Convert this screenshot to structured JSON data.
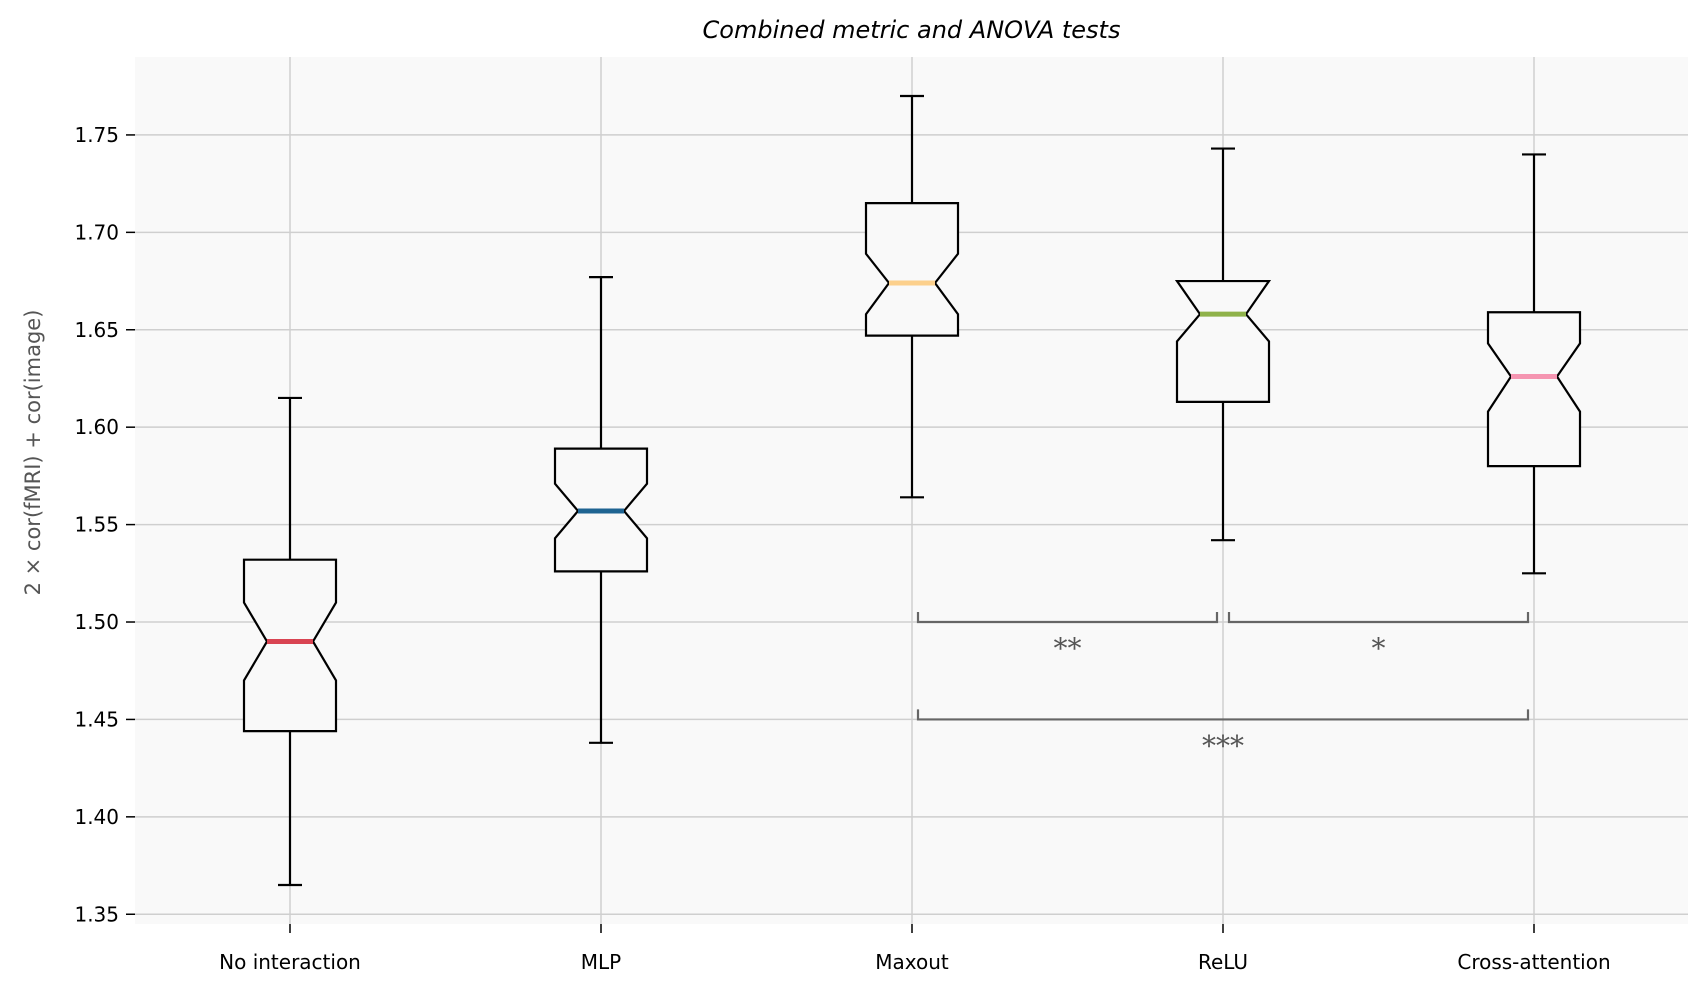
{
  "chart_data": {
    "type": "boxplot",
    "title": "Combined metric and ANOVA tests",
    "xlabel": "",
    "ylabel": "2 × cor(fMRI) + cor(image)",
    "ylim": [
      1.345,
      1.79
    ],
    "yticks": [
      "1.35",
      "1.40",
      "1.45",
      "1.50",
      "1.55",
      "1.60",
      "1.65",
      "1.70",
      "1.75"
    ],
    "ytick_values": [
      1.35,
      1.4,
      1.45,
      1.5,
      1.55,
      1.6,
      1.65,
      1.7,
      1.75
    ],
    "notched": true,
    "grid": true,
    "background_color": "#f9f9f9",
    "categories": [
      "No interaction",
      "MLP",
      "Maxout",
      "ReLU",
      "Cross-attention"
    ],
    "boxes": [
      {
        "whisker_low": 1.365,
        "q1": 1.444,
        "median": 1.49,
        "q3": 1.532,
        "whisker_high": 1.615,
        "notch_low": 1.47,
        "notch_high": 1.51,
        "median_color": "#d94452"
      },
      {
        "whisker_low": 1.438,
        "q1": 1.526,
        "median": 1.557,
        "q3": 1.589,
        "whisker_high": 1.677,
        "notch_low": 1.543,
        "notch_high": 1.571,
        "median_color": "#1f6492"
      },
      {
        "whisker_low": 1.564,
        "q1": 1.647,
        "median": 1.674,
        "q3": 1.715,
        "whisker_high": 1.77,
        "notch_low": 1.658,
        "notch_high": 1.689,
        "median_color": "#fcd08c"
      },
      {
        "whisker_low": 1.542,
        "q1": 1.613,
        "median": 1.658,
        "q3": 1.675,
        "whisker_high": 1.743,
        "notch_low": 1.644,
        "notch_high": 1.675,
        "median_color": "#8fb24a"
      },
      {
        "whisker_low": 1.525,
        "q1": 1.58,
        "median": 1.626,
        "q3": 1.659,
        "whisker_high": 1.74,
        "notch_low": 1.608,
        "notch_high": 1.643,
        "median_color": "#f595b1"
      }
    ],
    "annotations": [
      {
        "from": 2,
        "to": 3,
        "y": 1.5,
        "label": "**"
      },
      {
        "from": 3,
        "to": 4,
        "y": 1.5,
        "label": "*"
      },
      {
        "from": 2,
        "to": 4,
        "y": 1.45,
        "label": "***"
      }
    ]
  }
}
